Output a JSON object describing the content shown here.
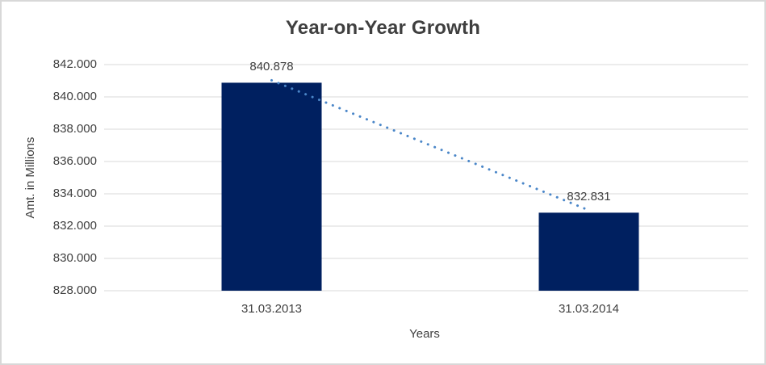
{
  "chart_data": {
    "type": "bar",
    "title": "Year-on-Year Growth",
    "xlabel": "Years",
    "ylabel": "Amt. in Millions",
    "categories": [
      "31.03.2013",
      "31.03.2014"
    ],
    "values": [
      840.878,
      832.831
    ],
    "data_labels": [
      "840.878",
      "832.831"
    ],
    "ylim": [
      828,
      842
    ],
    "ytick_interval": 2,
    "ytick_labels": [
      "842.000",
      "840.000",
      "838.000",
      "836.000",
      "834.000",
      "832.000",
      "830.000",
      "828.000"
    ],
    "grid": true,
    "legend_position": "none",
    "bar_color": "#002060",
    "gridline_color": "#d9d9d9",
    "text_color": "#404040",
    "title_color": "#3f3f3f",
    "trendline": {
      "style": "dotted",
      "color": "#4a86c8",
      "from_value": 840.878,
      "to_value": 832.831
    }
  }
}
